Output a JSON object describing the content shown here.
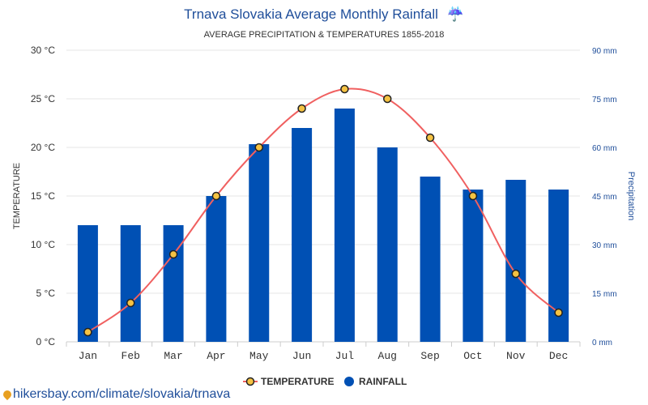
{
  "page": {
    "source_link": "hikersbay.com/climate/slovakia/trnava"
  },
  "colors": {
    "title": "#1f4e9a",
    "bar": "#0050b4",
    "line": "#f06060",
    "marker_fill": "#f5c242",
    "marker_stroke": "#222222",
    "grid": "#e6e6e6"
  },
  "chart_data": {
    "type": "bar",
    "title": "Trnava Slovakia Average Monthly Rainfall",
    "title_icon": "☔",
    "subtitle": "AVERAGE PRECIPITATION & TEMPERATURES 1855-2018",
    "categories": [
      "Jan",
      "Feb",
      "Mar",
      "Apr",
      "May",
      "Jun",
      "Jul",
      "Aug",
      "Sep",
      "Oct",
      "Nov",
      "Dec"
    ],
    "series": [
      {
        "name": "RAINFALL",
        "type": "bar",
        "axis": "right",
        "values": [
          36,
          36,
          36,
          45,
          61,
          66,
          72,
          60,
          51,
          47,
          50,
          47
        ]
      },
      {
        "name": "TEMPERATURE",
        "type": "line",
        "axis": "left",
        "values": [
          1,
          4,
          9,
          15,
          20,
          24,
          26,
          25,
          21,
          15,
          7,
          3
        ]
      }
    ],
    "left_axis": {
      "label": "TEMPERATURE",
      "ylim": [
        0,
        30
      ],
      "ticks": [
        0,
        5,
        10,
        15,
        20,
        25,
        30
      ],
      "tick_labels": [
        "0 °C",
        "5 °C",
        "10 °C",
        "15 °C",
        "20 °C",
        "25 °C",
        "30 °C"
      ]
    },
    "right_axis": {
      "label": "Precipitation",
      "ylim": [
        0,
        90
      ],
      "ticks": [
        0,
        15,
        30,
        45,
        60,
        75,
        90
      ],
      "tick_labels": [
        "0 mm",
        "15 mm",
        "30 mm",
        "45 mm",
        "60 mm",
        "75 mm",
        "90 mm"
      ]
    },
    "grid": true,
    "legend": {
      "placement": "bottom-center",
      "entries": [
        "TEMPERATURE",
        "RAINFALL"
      ]
    }
  }
}
